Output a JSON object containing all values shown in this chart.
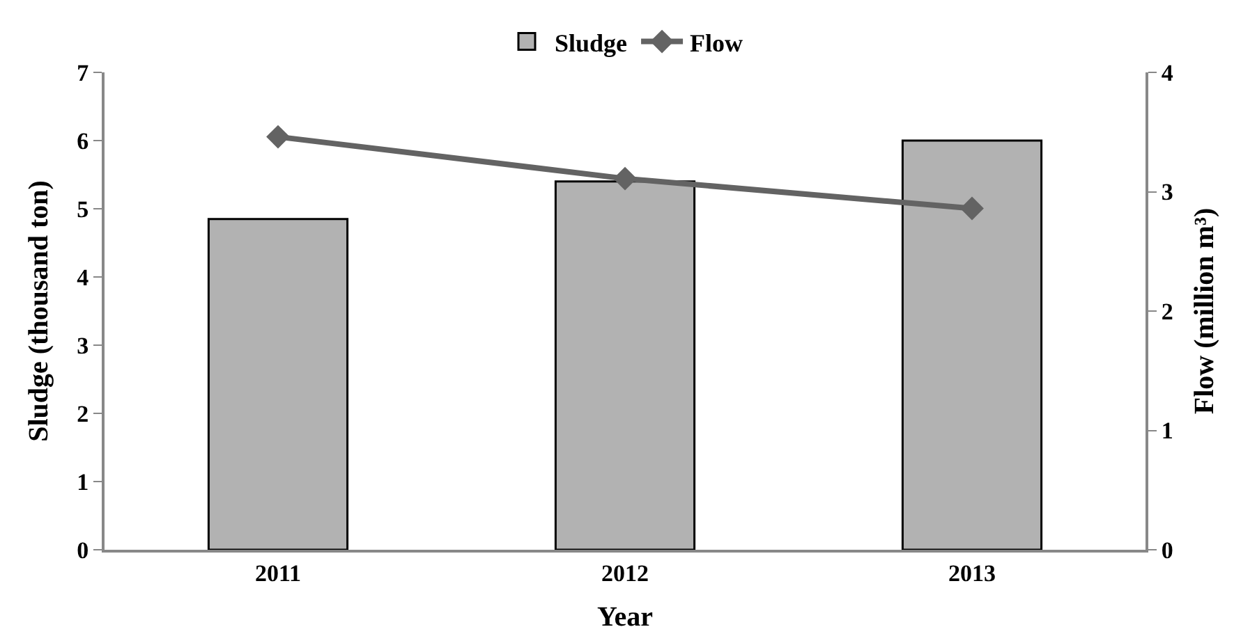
{
  "chart_data": {
    "type": "bar",
    "categories": [
      "2011",
      "2012",
      "2013"
    ],
    "xlabel": "Year",
    "ylabel": "Sludge (thousand ton)",
    "y2label": "Flow (million m³)",
    "series": [
      {
        "name": "Sludge",
        "color": "#b2b2b2",
        "values": [
          4.85,
          5.4,
          6.0
        ]
      },
      {
        "name": "Flow",
        "type": "line",
        "axis": "y2",
        "color": "#636363",
        "marker": "diamond",
        "values": [
          3.46,
          3.11,
          2.86
        ]
      }
    ],
    "ylim": [
      0,
      7
    ],
    "yticks": [
      0,
      1,
      2,
      3,
      4,
      5,
      6,
      7
    ],
    "y2lim": [
      0,
      4
    ],
    "y2ticks": [
      0,
      1,
      2,
      3,
      4
    ],
    "legend": "top"
  }
}
